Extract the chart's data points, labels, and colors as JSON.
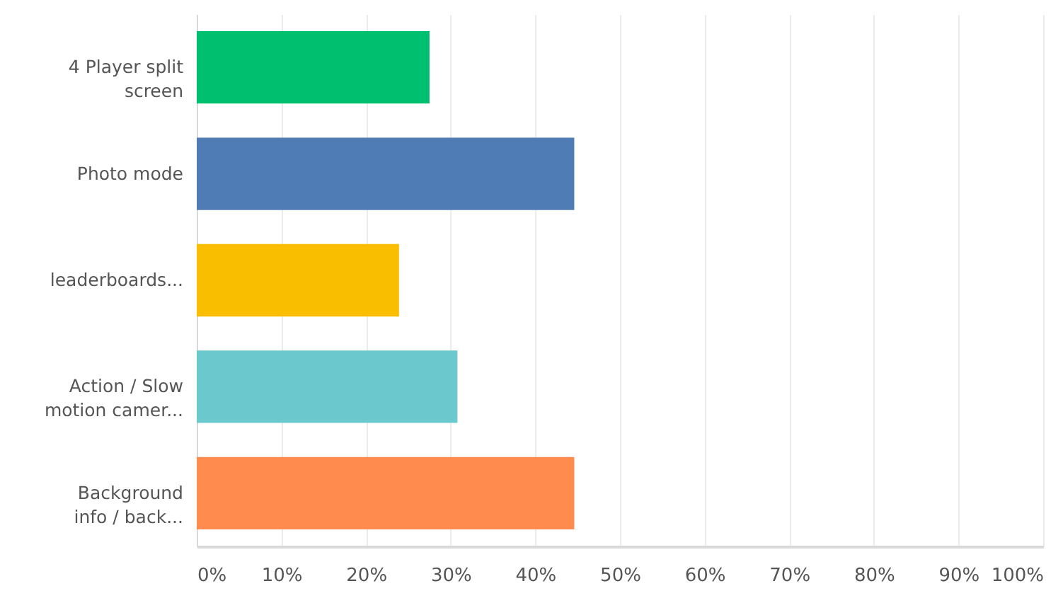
{
  "chart_data": {
    "type": "bar",
    "orientation": "horizontal",
    "categories": [
      "4 Player split\nscreen",
      "Photo mode",
      "leaderboards...",
      "Action / Slow\nmotion camer...",
      "Background\ninfo / back..."
    ],
    "values": [
      27.5,
      44.6,
      23.9,
      30.8,
      44.6
    ],
    "colors": [
      "#00bf6f",
      "#507cb6",
      "#f9be00",
      "#6bc8cd",
      "#ff8b4f"
    ],
    "xlim": [
      0,
      100
    ],
    "xticks": [
      {
        "value": 0,
        "label": "0%"
      },
      {
        "value": 10,
        "label": "10%"
      },
      {
        "value": 20,
        "label": "20%"
      },
      {
        "value": 30,
        "label": "30%"
      },
      {
        "value": 40,
        "label": "40%"
      },
      {
        "value": 50,
        "label": "50%"
      },
      {
        "value": 60,
        "label": "60%"
      },
      {
        "value": 70,
        "label": "70%"
      },
      {
        "value": 80,
        "label": "80%"
      },
      {
        "value": 90,
        "label": "90%"
      },
      {
        "value": 100,
        "label": "100%"
      }
    ],
    "grid": "x"
  }
}
